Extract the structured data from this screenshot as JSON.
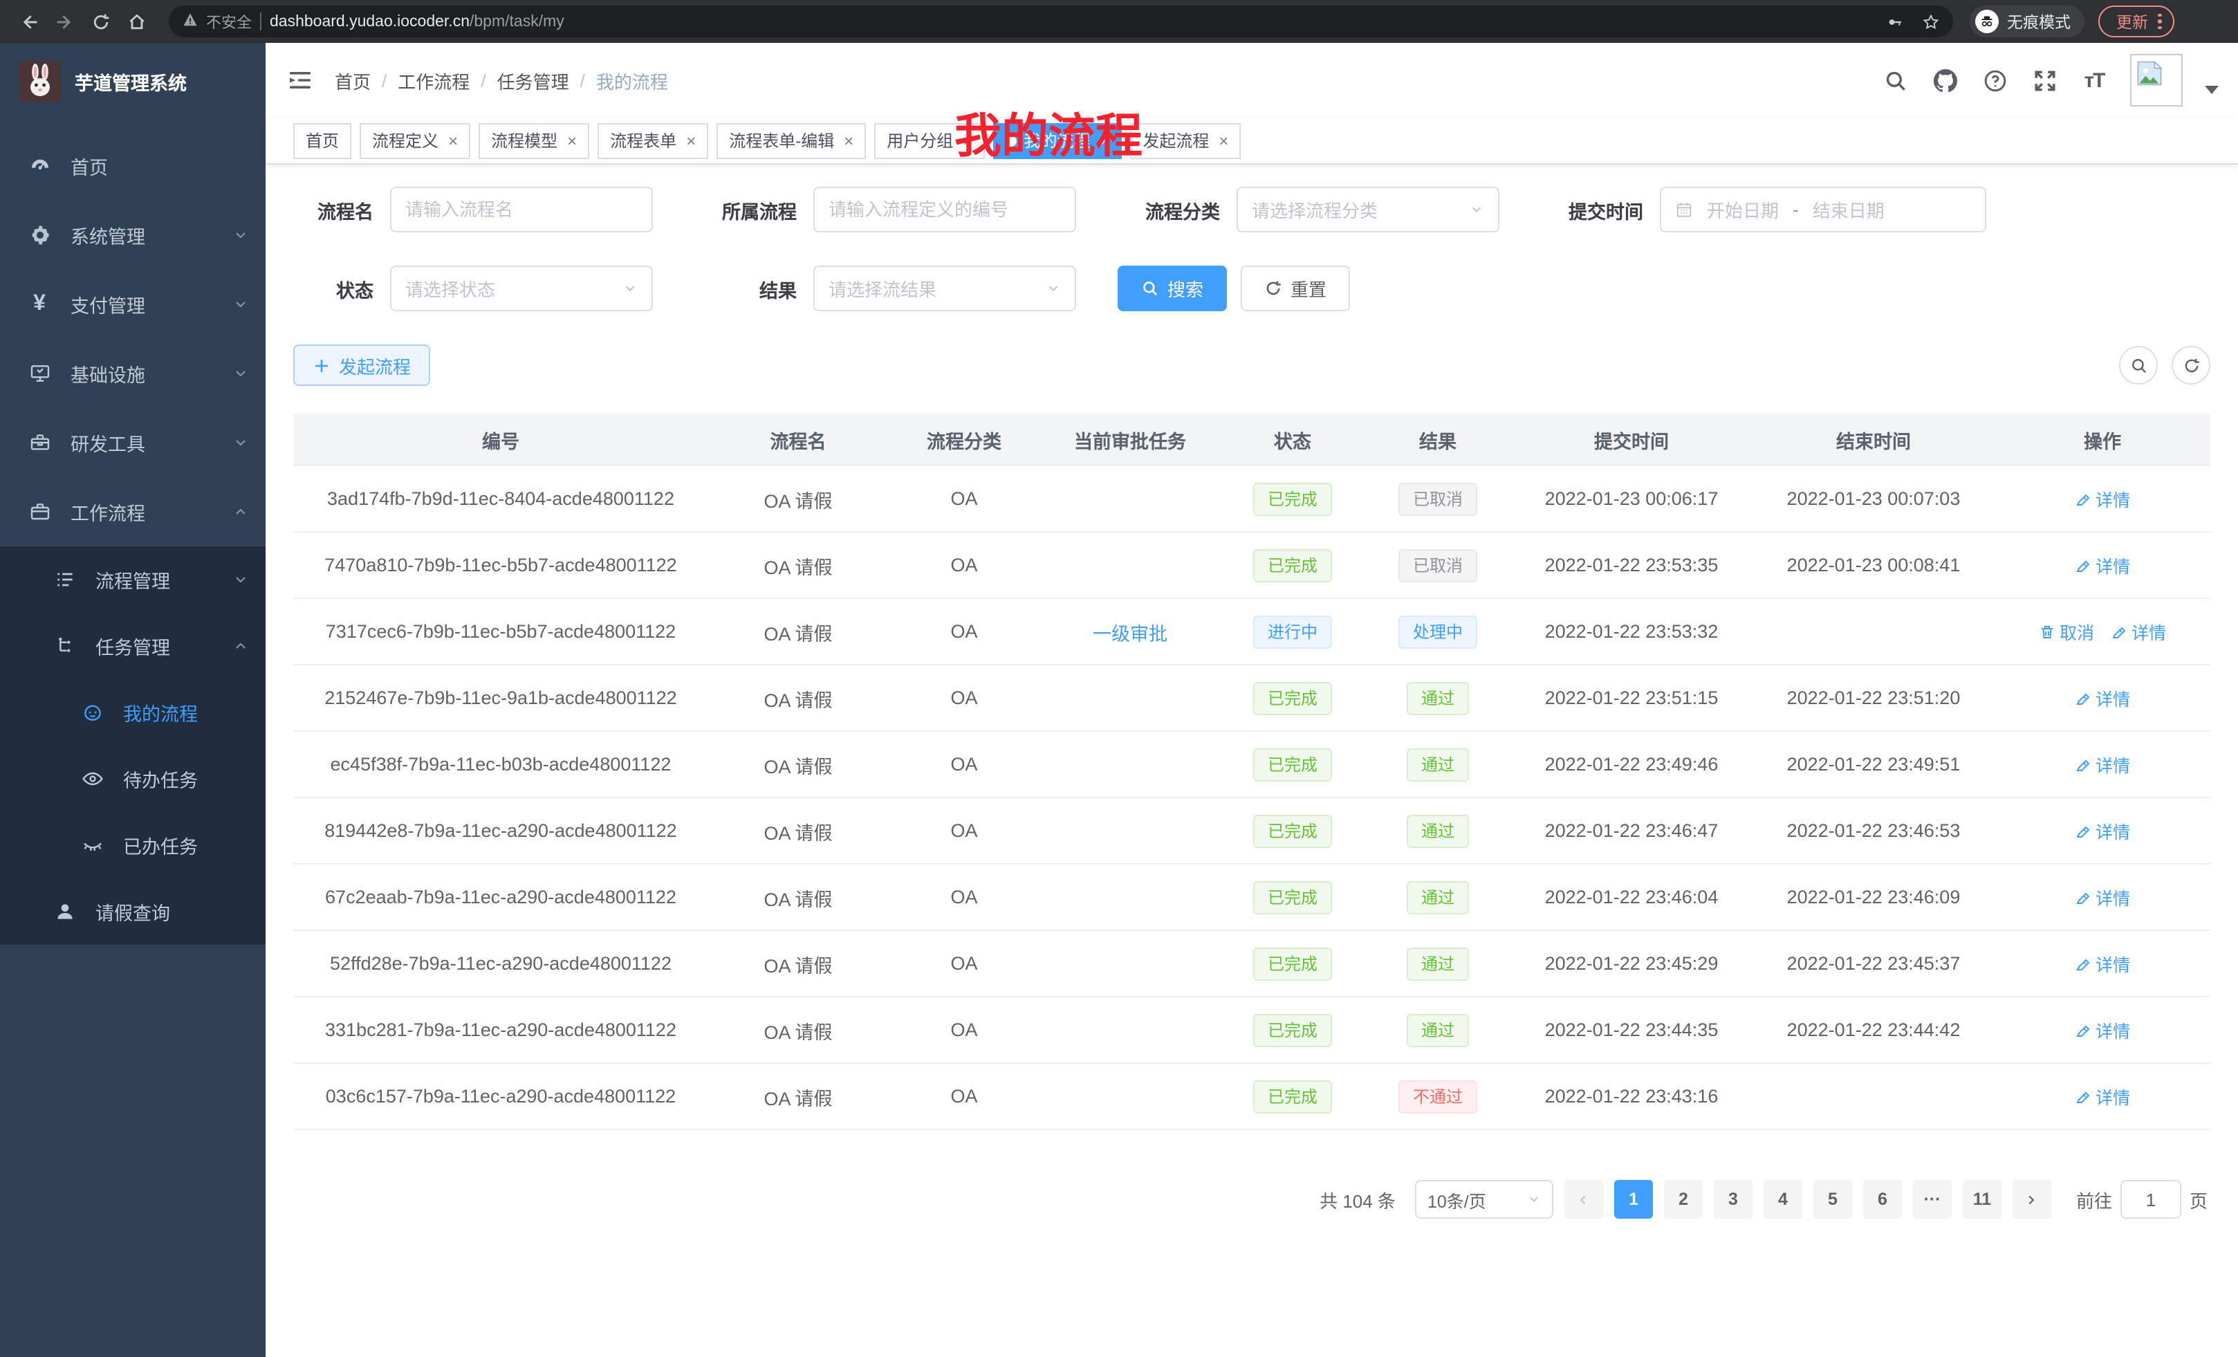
{
  "colors": {
    "accent": "#409eff",
    "success": "#67c23a",
    "danger": "#f56c6c",
    "info": "#909399",
    "annotation_red": "#f5222d",
    "sidebar_bg": "#304156",
    "submenu_bg": "#1f2d3d"
  },
  "browser": {
    "security_label": "不安全",
    "url_host": "dashboard.yudao.iocoder.cn",
    "url_path": "/bpm/task/my",
    "incognito_label": "无痕模式",
    "update_label": "更新"
  },
  "sidebar": {
    "app_title": "芋道管理系统",
    "items": [
      {
        "key": "home",
        "label": "首页",
        "icon": "dashboard-icon",
        "level": 0
      },
      {
        "key": "system",
        "label": "系统管理",
        "icon": "gear-icon",
        "level": 0,
        "chevron": "down"
      },
      {
        "key": "payment",
        "label": "支付管理",
        "icon": "yen-icon",
        "level": 0,
        "chevron": "down"
      },
      {
        "key": "infrastructure",
        "label": "基础设施",
        "icon": "monitor-icon",
        "level": 0,
        "chevron": "down"
      },
      {
        "key": "dev-tools",
        "label": "研发工具",
        "icon": "toolbox-icon",
        "level": 0,
        "chevron": "down"
      },
      {
        "key": "workflow",
        "label": "工作流程",
        "icon": "briefcase-icon",
        "level": 0,
        "chevron": "up"
      },
      {
        "key": "process-mgmt",
        "label": "流程管理",
        "icon": "tree-list-icon",
        "level": 1,
        "chevron": "down",
        "submenu": true
      },
      {
        "key": "task-mgmt",
        "label": "任务管理",
        "icon": "flow-icon",
        "level": 1,
        "chevron": "up",
        "submenu": true
      },
      {
        "key": "my-process",
        "label": "我的流程",
        "icon": "face-icon",
        "level": 2,
        "active": true,
        "submenu": true
      },
      {
        "key": "todo-tasks",
        "label": "待办任务",
        "icon": "eye-open-icon",
        "level": 2,
        "submenu": true
      },
      {
        "key": "done-tasks",
        "label": "已办任务",
        "icon": "eye-closed-icon",
        "level": 2,
        "submenu": true
      },
      {
        "key": "leave-query",
        "label": "请假查询",
        "icon": "user-icon",
        "level": 1,
        "submenu": true
      }
    ]
  },
  "header": {
    "breadcrumb": [
      "首页",
      "工作流程",
      "任务管理",
      "我的流程"
    ],
    "breadcrumb_separator": "/",
    "overlay_title": "我的流程"
  },
  "tabs": [
    {
      "key": "home",
      "label": "首页",
      "closable": false
    },
    {
      "key": "process-definition",
      "label": "流程定义",
      "closable": true
    },
    {
      "key": "process-model",
      "label": "流程模型",
      "closable": true
    },
    {
      "key": "process-form",
      "label": "流程表单",
      "closable": true
    },
    {
      "key": "process-form-edit",
      "label": "流程表单-编辑",
      "closable": true
    },
    {
      "key": "user-group",
      "label": "用户分组",
      "closable": true
    },
    {
      "key": "my-process",
      "label": "我的流程",
      "closable": true,
      "active": true
    },
    {
      "key": "start-process",
      "label": "发起流程",
      "closable": true
    }
  ],
  "filters": {
    "rows": [
      [
        {
          "key": "process-name",
          "label": "流程名",
          "type": "input",
          "placeholder": "请输入流程名"
        },
        {
          "key": "owning-process",
          "label": "所属流程",
          "type": "input",
          "placeholder": "请输入流程定义的编号"
        },
        {
          "key": "process-category",
          "label": "流程分类",
          "type": "select",
          "placeholder": "请选择流程分类"
        },
        {
          "key": "submit-time",
          "label": "提交时间",
          "type": "daterange",
          "start_placeholder": "开始日期",
          "separator": "-",
          "end_placeholder": "结束日期"
        }
      ],
      [
        {
          "key": "status",
          "label": "状态",
          "type": "select",
          "placeholder": "请选择状态"
        },
        {
          "key": "result",
          "label": "结果",
          "type": "select",
          "placeholder": "请选择流结果"
        }
      ]
    ],
    "search_label": "搜索",
    "reset_label": "重置"
  },
  "toolbar": {
    "start_process_label": "发起流程"
  },
  "table": {
    "columns": [
      "编号",
      "流程名",
      "流程分类",
      "当前审批任务",
      "状态",
      "结果",
      "提交时间",
      "结束时间",
      "操作"
    ],
    "rows": [
      {
        "id": "3ad174fb-7b9d-11ec-8404-acde48001122",
        "name": "OA 请假",
        "category": "OA",
        "task": "",
        "status": {
          "text": "已完成",
          "type": "success"
        },
        "result": {
          "text": "已取消",
          "type": "info"
        },
        "submit_time": "2022-01-23 00:06:17",
        "end_time": "2022-01-23 00:07:03",
        "actions": [
          {
            "label": "详情",
            "icon": "edit-icon"
          }
        ]
      },
      {
        "id": "7470a810-7b9b-11ec-b5b7-acde48001122",
        "name": "OA 请假",
        "category": "OA",
        "task": "",
        "status": {
          "text": "已完成",
          "type": "success"
        },
        "result": {
          "text": "已取消",
          "type": "info"
        },
        "submit_time": "2022-01-22 23:53:35",
        "end_time": "2022-01-23 00:08:41",
        "actions": [
          {
            "label": "详情",
            "icon": "edit-icon"
          }
        ]
      },
      {
        "id": "7317cec6-7b9b-11ec-b5b7-acde48001122",
        "name": "OA 请假",
        "category": "OA",
        "task": "一级审批",
        "status": {
          "text": "进行中",
          "type": "primary"
        },
        "result": {
          "text": "处理中",
          "type": "primary"
        },
        "submit_time": "2022-01-22 23:53:32",
        "end_time": "",
        "actions": [
          {
            "label": "取消",
            "icon": "trash-icon"
          },
          {
            "label": "详情",
            "icon": "edit-icon"
          }
        ]
      },
      {
        "id": "2152467e-7b9b-11ec-9a1b-acde48001122",
        "name": "OA 请假",
        "category": "OA",
        "task": "",
        "status": {
          "text": "已完成",
          "type": "success"
        },
        "result": {
          "text": "通过",
          "type": "success"
        },
        "submit_time": "2022-01-22 23:51:15",
        "end_time": "2022-01-22 23:51:20",
        "actions": [
          {
            "label": "详情",
            "icon": "edit-icon"
          }
        ]
      },
      {
        "id": "ec45f38f-7b9a-11ec-b03b-acde48001122",
        "name": "OA 请假",
        "category": "OA",
        "task": "",
        "status": {
          "text": "已完成",
          "type": "success"
        },
        "result": {
          "text": "通过",
          "type": "success"
        },
        "submit_time": "2022-01-22 23:49:46",
        "end_time": "2022-01-22 23:49:51",
        "actions": [
          {
            "label": "详情",
            "icon": "edit-icon"
          }
        ]
      },
      {
        "id": "819442e8-7b9a-11ec-a290-acde48001122",
        "name": "OA 请假",
        "category": "OA",
        "task": "",
        "status": {
          "text": "已完成",
          "type": "success"
        },
        "result": {
          "text": "通过",
          "type": "success"
        },
        "submit_time": "2022-01-22 23:46:47",
        "end_time": "2022-01-22 23:46:53",
        "actions": [
          {
            "label": "详情",
            "icon": "edit-icon"
          }
        ]
      },
      {
        "id": "67c2eaab-7b9a-11ec-a290-acde48001122",
        "name": "OA 请假",
        "category": "OA",
        "task": "",
        "status": {
          "text": "已完成",
          "type": "success"
        },
        "result": {
          "text": "通过",
          "type": "success"
        },
        "submit_time": "2022-01-22 23:46:04",
        "end_time": "2022-01-22 23:46:09",
        "actions": [
          {
            "label": "详情",
            "icon": "edit-icon"
          }
        ]
      },
      {
        "id": "52ffd28e-7b9a-11ec-a290-acde48001122",
        "name": "OA 请假",
        "category": "OA",
        "task": "",
        "status": {
          "text": "已完成",
          "type": "success"
        },
        "result": {
          "text": "通过",
          "type": "success"
        },
        "submit_time": "2022-01-22 23:45:29",
        "end_time": "2022-01-22 23:45:37",
        "actions": [
          {
            "label": "详情",
            "icon": "edit-icon"
          }
        ]
      },
      {
        "id": "331bc281-7b9a-11ec-a290-acde48001122",
        "name": "OA 请假",
        "category": "OA",
        "task": "",
        "status": {
          "text": "已完成",
          "type": "success"
        },
        "result": {
          "text": "通过",
          "type": "success"
        },
        "submit_time": "2022-01-22 23:44:35",
        "end_time": "2022-01-22 23:44:42",
        "actions": [
          {
            "label": "详情",
            "icon": "edit-icon"
          }
        ]
      },
      {
        "id": "03c6c157-7b9a-11ec-a290-acde48001122",
        "name": "OA 请假",
        "category": "OA",
        "task": "",
        "status": {
          "text": "已完成",
          "type": "success"
        },
        "result": {
          "text": "不通过",
          "type": "danger"
        },
        "submit_time": "2022-01-22 23:43:16",
        "end_time": "",
        "actions": [
          {
            "label": "详情",
            "icon": "edit-icon"
          }
        ]
      }
    ]
  },
  "pagination": {
    "total_text": "共 104 条",
    "page_size_label": "10条/页",
    "pages": [
      "1",
      "2",
      "3",
      "4",
      "5",
      "6",
      "···",
      "11"
    ],
    "active_page": "1",
    "goto_label": "前往",
    "goto_value": "1",
    "page_unit": "页"
  }
}
